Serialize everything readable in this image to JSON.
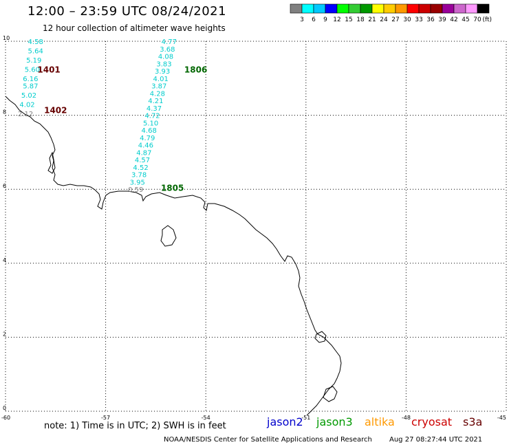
{
  "title": "12:00 – 23:59 UTC 08/24/2021",
  "subtitle": "12 hour collection of altimeter wave heights",
  "footer_note": "note: 1) Time is in UTC; 2) SWH is in feet",
  "credit": "NOAA/NESDIS Center for Satellite Applications and Research",
  "credit_time": "Aug 27 08:27:44 UTC 2021",
  "legend": [
    {
      "label": "jason2",
      "color": "#0000cc"
    },
    {
      "label": "jason3",
      "color": "#009900"
    },
    {
      "label": "altika",
      "color": "#ff9900"
    },
    {
      "label": "cryosat",
      "color": "#cc0000"
    },
    {
      "label": "s3a",
      "color": "#660000"
    }
  ],
  "color_scale": {
    "unit": "(ft)",
    "swatches": [
      "#808080",
      "#00ffff",
      "#00c8ff",
      "#0000ff",
      "#00ff00",
      "#33cc33",
      "#009900",
      "#ffff00",
      "#ffcc00",
      "#ff9900",
      "#ff0000",
      "#cc0000",
      "#990000",
      "#990099",
      "#cc66cc",
      "#ff99ff",
      "#000000"
    ],
    "labels": [
      "3",
      "6",
      "9",
      "12",
      "15",
      "18",
      "21",
      "24",
      "27",
      "30",
      "33",
      "36",
      "39",
      "42",
      "45",
      "70"
    ]
  },
  "chart_data": {
    "type": "map",
    "x_ticks": [
      "-60",
      "-57",
      "-54",
      "-51",
      "-48",
      "-45"
    ],
    "y_ticks": [
      "0",
      "2",
      "4",
      "6",
      "8",
      "10"
    ],
    "xlim": [
      -60,
      -45
    ],
    "ylim": [
      0,
      10
    ],
    "grid": true,
    "pass_labels": [
      {
        "label": "1401",
        "lon": -58.7,
        "lat": 9.25,
        "color": "#660000"
      },
      {
        "label": "1402",
        "lon": -58.5,
        "lat": 8.15,
        "color": "#660000"
      },
      {
        "label": "1806",
        "lon": -54.3,
        "lat": 9.25,
        "color": "#006600"
      },
      {
        "label": "1805",
        "lon": -55.0,
        "lat": 6.05,
        "color": "#006600"
      }
    ],
    "tracks": [
      {
        "name": "1401",
        "points": [
          {
            "lon": -59.1,
            "lat": 10.0,
            "swh": "4.58",
            "color": "#00cccc"
          },
          {
            "lon": -59.1,
            "lat": 9.75,
            "swh": "5.64",
            "color": "#00cccc"
          },
          {
            "lon": -59.15,
            "lat": 9.5,
            "swh": "5.19",
            "color": "#00cccc"
          },
          {
            "lon": -59.2,
            "lat": 9.25,
            "swh": "5.60",
            "color": "#00cccc"
          },
          {
            "lon": -59.25,
            "lat": 9.0,
            "swh": "6.16",
            "color": "#00cccc"
          },
          {
            "lon": -59.25,
            "lat": 8.8,
            "swh": "5.87",
            "color": "#00cccc"
          },
          {
            "lon": -59.3,
            "lat": 8.55,
            "swh": "5.02",
            "color": "#00cccc"
          },
          {
            "lon": -59.35,
            "lat": 8.3,
            "swh": "4.02",
            "color": "#00cccc"
          },
          {
            "lon": -59.4,
            "lat": 8.05,
            "swh": "2.12",
            "color": "#808080"
          }
        ]
      },
      {
        "name": "1806",
        "points": [
          {
            "lon": -55.1,
            "lat": 10.0,
            "swh": "4.77",
            "color": "#00cccc"
          },
          {
            "lon": -55.15,
            "lat": 9.8,
            "swh": "3.68",
            "color": "#00cccc"
          },
          {
            "lon": -55.2,
            "lat": 9.6,
            "swh": "4.08",
            "color": "#00cccc"
          },
          {
            "lon": -55.25,
            "lat": 9.4,
            "swh": "3.83",
            "color": "#00cccc"
          },
          {
            "lon": -55.3,
            "lat": 9.2,
            "swh": "3.93",
            "color": "#00cccc"
          },
          {
            "lon": -55.35,
            "lat": 9.0,
            "swh": "4.01",
            "color": "#00cccc"
          },
          {
            "lon": -55.4,
            "lat": 8.8,
            "swh": "3.87",
            "color": "#00cccc"
          },
          {
            "lon": -55.45,
            "lat": 8.6,
            "swh": "4.28",
            "color": "#00cccc"
          },
          {
            "lon": -55.5,
            "lat": 8.4,
            "swh": "4.21",
            "color": "#00cccc"
          },
          {
            "lon": -55.55,
            "lat": 8.2,
            "swh": "4.37",
            "color": "#00cccc"
          },
          {
            "lon": -55.6,
            "lat": 8.0,
            "swh": "4.72",
            "color": "#00cccc"
          },
          {
            "lon": -55.65,
            "lat": 7.8,
            "swh": "5.10",
            "color": "#00cccc"
          },
          {
            "lon": -55.7,
            "lat": 7.6,
            "swh": "4.68",
            "color": "#00cccc"
          },
          {
            "lon": -55.75,
            "lat": 7.4,
            "swh": "4.79",
            "color": "#00cccc"
          },
          {
            "lon": -55.8,
            "lat": 7.2,
            "swh": "4.46",
            "color": "#00cccc"
          },
          {
            "lon": -55.85,
            "lat": 7.0,
            "swh": "4.87",
            "color": "#00cccc"
          },
          {
            "lon": -55.9,
            "lat": 6.8,
            "swh": "4.57",
            "color": "#00cccc"
          },
          {
            "lon": -55.95,
            "lat": 6.6,
            "swh": "4.52",
            "color": "#00cccc"
          },
          {
            "lon": -56.0,
            "lat": 6.4,
            "swh": "3.78",
            "color": "#00cccc"
          },
          {
            "lon": -56.05,
            "lat": 6.2,
            "swh": "3.95",
            "color": "#00cccc"
          },
          {
            "lon": -56.1,
            "lat": 6.0,
            "swh": "0.59",
            "color": "#808080"
          }
        ]
      }
    ]
  }
}
